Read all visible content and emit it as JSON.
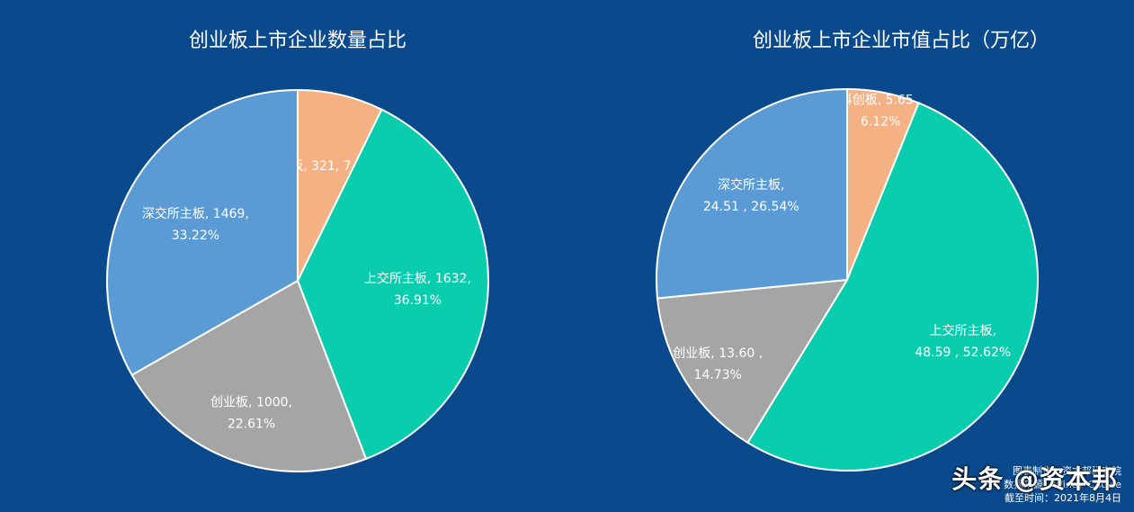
{
  "chart_data": [
    {
      "type": "pie",
      "title": "创业板上市企业数量占比",
      "slices": [
        {
          "name": "科创板",
          "value": 321,
          "percent": "7.26%",
          "label_line1": "科创板, 321, 7.26%",
          "label_line2": "",
          "color": "#f4b183"
        },
        {
          "name": "上交所主板",
          "value": 1632,
          "percent": "36.91%",
          "label_line1": "上交所主板, 1632,",
          "label_line2": "36.91%",
          "color": "#0acdad"
        },
        {
          "name": "创业板",
          "value": 1000,
          "percent": "22.61%",
          "label_line1": "创业板, 1000,",
          "label_line2": "22.61%",
          "color": "#a5a5a5"
        },
        {
          "name": "深交所主板",
          "value": 1469,
          "percent": "33.22%",
          "label_line1": "深交所主板, 1469,",
          "label_line2": "33.22%",
          "color": "#5b9bd5"
        }
      ]
    },
    {
      "type": "pie",
      "title": "创业板上市企业市值占比（万亿）",
      "slices": [
        {
          "name": "科创板",
          "value": 5.65,
          "percent": "6.12%",
          "label_line1": "科创板, 5.65 ,",
          "label_line2": "6.12%",
          "color": "#f4b183"
        },
        {
          "name": "上交所主板",
          "value": 48.59,
          "percent": "52.62%",
          "label_line1": "上交所主板,",
          "label_line2": "48.59 , 52.62%",
          "color": "#0acdad"
        },
        {
          "name": "创业板",
          "value": 13.6,
          "percent": "14.73%",
          "label_line1": "创业板, 13.60 ,",
          "label_line2": "14.73%",
          "color": "#a5a5a5"
        },
        {
          "name": "深交所主板",
          "value": 24.51,
          "percent": "26.54%",
          "label_line1": "深交所主板,",
          "label_line2": "24.51 , 26.54%",
          "color": "#5b9bd5"
        }
      ]
    }
  ],
  "footer": {
    "line1": "图表制作：资本邦研究院",
    "line2": "数据来源：Wind，Choice",
    "line3": "截至时间：2021年8月4日"
  },
  "watermark": "头条 @资本邦"
}
